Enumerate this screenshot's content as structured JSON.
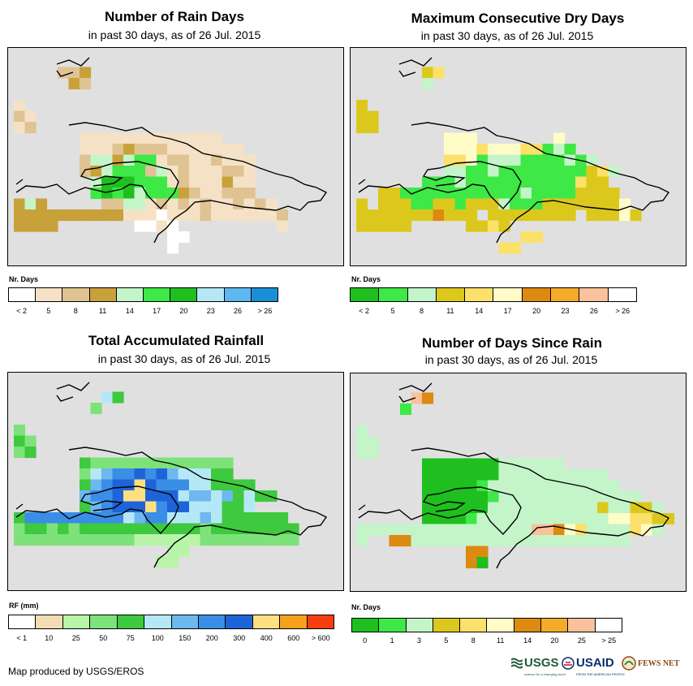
{
  "panels": [
    {
      "id": "rain-days",
      "title": "Number of Rain Days",
      "subtitle": "in past 30 days, as of 26 Jul. 2015",
      "legend_title": "Nr. Days",
      "legend_colors": [
        "#ffffff",
        "#f5e2c6",
        "#e0c393",
        "#c9a13b",
        "#c4f5c9",
        "#3ee846",
        "#1fbf1f",
        "#b5e8f7",
        "#5db8ef",
        "#1b8fd6"
      ],
      "legend_labels": [
        "< 2",
        "5",
        "8",
        "11",
        "14",
        "17",
        "20",
        "23",
        "26",
        "> 26"
      ]
    },
    {
      "id": "max-dry-days",
      "title": "Maximum Consecutive Dry Days",
      "subtitle": "in past 30 days, as of 26 Jul. 2015",
      "legend_title": "Nr. Days",
      "legend_colors": [
        "#1fbf1f",
        "#3ee846",
        "#c4f5c9",
        "#dcc81c",
        "#fbe169",
        "#fffcc8",
        "#dd8a10",
        "#f4ab2a",
        "#f9c29a",
        "#ffffff"
      ],
      "legend_labels": [
        "< 2",
        "5",
        "8",
        "11",
        "14",
        "17",
        "20",
        "23",
        "26",
        "> 26"
      ]
    },
    {
      "id": "total-rainfall",
      "title": "Total Accumulated Rainfall",
      "subtitle": "in past 30 days, as of 26 Jul. 2015",
      "legend_title": "RF (mm)",
      "legend_colors": [
        "#ffffff",
        "#f1dcb3",
        "#b8f5a8",
        "#7ee27a",
        "#3ec93e",
        "#b5e8f7",
        "#6cb8ef",
        "#3a8ee6",
        "#1e64d8",
        "#ffe080",
        "#f7a11a",
        "#f53d10"
      ],
      "legend_labels": [
        "< 1",
        "10",
        "25",
        "50",
        "75",
        "100",
        "150",
        "200",
        "300",
        "400",
        "600",
        "> 600"
      ]
    },
    {
      "id": "days-since-rain",
      "title": "Number of Days Since Rain",
      "subtitle": "in past 30 days, as of 26 Jul. 2015",
      "legend_title": "Nr. Days",
      "legend_colors": [
        "#1fbf1f",
        "#3ee846",
        "#c4f5c9",
        "#dcc81c",
        "#fbe169",
        "#fffcc8",
        "#dd8a10",
        "#f4ab2a",
        "#f9c29a",
        "#ffffff"
      ],
      "legend_labels": [
        "0",
        "1",
        "3",
        "5",
        "8",
        "11",
        "14",
        "20",
        "25",
        "> 25"
      ]
    }
  ],
  "footer": "Map produced by USGS/EROS",
  "logos": {
    "usgs": "USGS",
    "usgs_tagline": "science for a changing world",
    "usaid": "USAID",
    "usaid_tagline": "FROM THE AMERICAN PEOPLE",
    "fews": "FEWS NET"
  }
}
